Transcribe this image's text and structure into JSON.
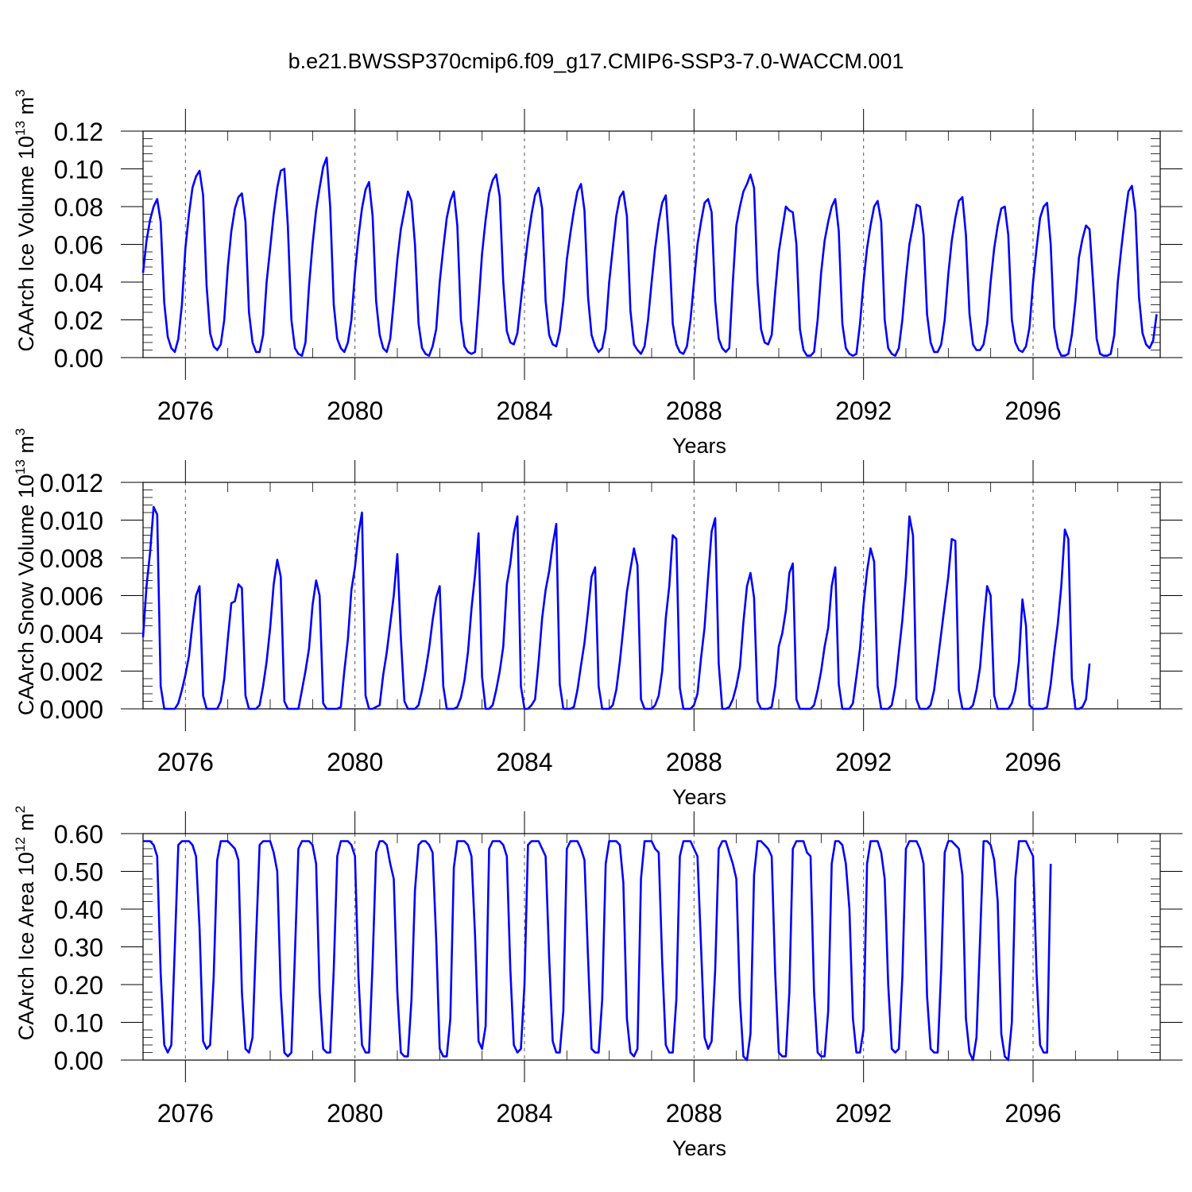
{
  "title": "b.e21.BWSSP370cmip6.f09_g17.CMIP6-SSP3-7.0-WACCM.001",
  "style": {
    "series_color": "#0000ff",
    "axis_color": "#000000",
    "ref_line_color": "#555555"
  },
  "chart_data": [
    {
      "type": "line",
      "xlabel": "Years",
      "ylabel": "CAArch Ice Volume 10",
      "ylabel_exponent": "13",
      "ylabel_unit": "m",
      "ylabel_unit_exponent": "3",
      "xlim": [
        2075.0,
        2099.0
      ],
      "ylim": [
        0.0,
        0.12
      ],
      "xticks": [
        2076,
        2080,
        2084,
        2088,
        2092,
        2096
      ],
      "yticks": [
        "0.00",
        "0.02",
        "0.04",
        "0.06",
        "0.08",
        "0.10",
        "0.12"
      ],
      "reference_lines_x": [
        2076,
        2080,
        2084,
        2088,
        2092,
        2096
      ],
      "series": [
        {
          "cycle": "annual",
          "start": 2075.0,
          "step_years": 0.08333,
          "values": [
            0.045,
            0.062,
            0.073,
            0.08,
            0.084,
            0.072,
            0.029,
            0.011,
            0.005,
            0.003,
            0.01,
            0.028,
            0.058,
            0.076,
            0.09,
            0.096,
            0.099,
            0.086,
            0.038,
            0.013,
            0.006,
            0.004,
            0.007,
            0.02,
            0.048,
            0.067,
            0.079,
            0.085,
            0.087,
            0.072,
            0.024,
            0.008,
            0.003,
            0.003,
            0.012,
            0.04,
            0.058,
            0.076,
            0.09,
            0.099,
            0.1,
            0.07,
            0.02,
            0.005,
            0.002,
            0.001,
            0.008,
            0.038,
            0.06,
            0.078,
            0.09,
            0.101,
            0.106,
            0.08,
            0.028,
            0.01,
            0.005,
            0.003,
            0.008,
            0.02,
            0.045,
            0.064,
            0.079,
            0.089,
            0.093,
            0.075,
            0.03,
            0.012,
            0.005,
            0.003,
            0.01,
            0.03,
            0.052,
            0.068,
            0.078,
            0.088,
            0.083,
            0.06,
            0.018,
            0.005,
            0.002,
            0.001,
            0.006,
            0.015,
            0.04,
            0.058,
            0.074,
            0.083,
            0.088,
            0.07,
            0.02,
            0.006,
            0.003,
            0.002,
            0.003,
            0.028,
            0.055,
            0.073,
            0.087,
            0.094,
            0.097,
            0.085,
            0.04,
            0.014,
            0.008,
            0.007,
            0.013,
            0.03,
            0.047,
            0.063,
            0.076,
            0.086,
            0.09,
            0.079,
            0.03,
            0.012,
            0.007,
            0.006,
            0.014,
            0.03,
            0.052,
            0.066,
            0.078,
            0.088,
            0.092,
            0.078,
            0.032,
            0.012,
            0.006,
            0.003,
            0.005,
            0.015,
            0.04,
            0.058,
            0.075,
            0.085,
            0.088,
            0.075,
            0.025,
            0.007,
            0.004,
            0.002,
            0.006,
            0.02,
            0.04,
            0.058,
            0.072,
            0.082,
            0.086,
            0.058,
            0.018,
            0.007,
            0.003,
            0.002,
            0.006,
            0.02,
            0.04,
            0.06,
            0.072,
            0.082,
            0.084,
            0.077,
            0.03,
            0.01,
            0.005,
            0.003,
            0.005,
            0.04,
            0.07,
            0.08,
            0.088,
            0.092,
            0.097,
            0.09,
            0.04,
            0.015,
            0.008,
            0.007,
            0.012,
            0.035,
            0.056,
            0.068,
            0.08,
            0.078,
            0.077,
            0.06,
            0.015,
            0.004,
            0.001,
            0.001,
            0.003,
            0.02,
            0.045,
            0.062,
            0.072,
            0.08,
            0.084,
            0.067,
            0.018,
            0.005,
            0.002,
            0.001,
            0.002,
            0.018,
            0.04,
            0.058,
            0.07,
            0.08,
            0.083,
            0.072,
            0.02,
            0.005,
            0.002,
            0.001,
            0.005,
            0.02,
            0.042,
            0.06,
            0.07,
            0.081,
            0.08,
            0.065,
            0.023,
            0.008,
            0.003,
            0.003,
            0.007,
            0.02,
            0.044,
            0.062,
            0.074,
            0.083,
            0.085,
            0.065,
            0.023,
            0.007,
            0.004,
            0.004,
            0.007,
            0.018,
            0.04,
            0.058,
            0.07,
            0.079,
            0.08,
            0.065,
            0.02,
            0.008,
            0.004,
            0.003,
            0.006,
            0.016,
            0.04,
            0.058,
            0.074,
            0.08,
            0.082,
            0.06,
            0.016,
            0.005,
            0.001,
            0.001,
            0.002,
            0.012,
            0.03,
            0.053,
            0.063,
            0.07,
            0.068,
            0.04,
            0.01,
            0.002,
            0.001,
            0.001,
            0.002,
            0.012,
            0.04,
            0.058,
            0.074,
            0.088,
            0.091,
            0.077,
            0.032,
            0.013,
            0.007,
            0.005,
            0.009,
            0.023
          ]
        }
      ]
    },
    {
      "type": "line",
      "xlabel": "Years",
      "ylabel": "CAArch Snow Volume 10",
      "ylabel_exponent": "13",
      "ylabel_unit": "m",
      "ylabel_unit_exponent": "3",
      "xlim": [
        2075.0,
        2099.0
      ],
      "ylim": [
        0.0,
        0.012
      ],
      "xticks": [
        2076,
        2080,
        2084,
        2088,
        2092,
        2096
      ],
      "yticks": [
        "0.000",
        "0.002",
        "0.004",
        "0.006",
        "0.008",
        "0.010",
        "0.012"
      ],
      "reference_lines_x": [
        2076,
        2080,
        2084,
        2088,
        2092,
        2096
      ],
      "series": [
        {
          "cycle": "annual",
          "start": 2075.0,
          "step_years": 0.08333,
          "values": [
            0.0038,
            0.0065,
            0.0083,
            0.0107,
            0.0103,
            0.0012,
            0.0,
            0.0,
            0.0,
            0.0,
            0.0003,
            0.001,
            0.0018,
            0.0028,
            0.0045,
            0.006,
            0.0065,
            0.0007,
            0.0,
            0.0,
            0.0,
            0.0,
            0.0004,
            0.0016,
            0.0037,
            0.0056,
            0.0057,
            0.0066,
            0.0064,
            0.0007,
            0.0,
            0.0,
            0.0,
            0.0002,
            0.0012,
            0.0025,
            0.0043,
            0.0066,
            0.0079,
            0.007,
            0.0004,
            0.0,
            0.0,
            0.0,
            0.0,
            0.001,
            0.002,
            0.0032,
            0.0055,
            0.0068,
            0.006,
            0.0003,
            0.0,
            0.0,
            0.0,
            0.0,
            0.0001,
            0.002,
            0.0037,
            0.0063,
            0.0075,
            0.0093,
            0.0104,
            0.0007,
            0.0,
            0.0,
            0.0001,
            0.0002,
            0.0018,
            0.003,
            0.0045,
            0.006,
            0.0082,
            0.0038,
            0.0004,
            0.0,
            0.0,
            0.0,
            0.0002,
            0.001,
            0.002,
            0.0032,
            0.0047,
            0.0059,
            0.0065,
            0.0012,
            0.0,
            0.0,
            0.0,
            0.0001,
            0.0006,
            0.0015,
            0.003,
            0.0053,
            0.0071,
            0.0093,
            0.0017,
            0.0,
            0.0,
            0.0002,
            0.001,
            0.002,
            0.0033,
            0.0066,
            0.0077,
            0.0093,
            0.0102,
            0.0012,
            0.0,
            0.0,
            0.0002,
            0.0005,
            0.0025,
            0.0048,
            0.0063,
            0.0073,
            0.0087,
            0.0098,
            0.0013,
            0.0,
            0.0,
            0.0,
            0.0001,
            0.001,
            0.0023,
            0.0035,
            0.0052,
            0.007,
            0.0075,
            0.0012,
            0.0,
            0.0,
            0.0,
            0.0002,
            0.001,
            0.0025,
            0.0043,
            0.0062,
            0.0074,
            0.0085,
            0.0076,
            0.0005,
            0.0,
            0.0,
            0.0,
            0.0002,
            0.0007,
            0.002,
            0.0048,
            0.0065,
            0.0092,
            0.009,
            0.0011,
            0.0,
            0.0,
            0.0,
            0.0002,
            0.0008,
            0.0027,
            0.0043,
            0.007,
            0.0094,
            0.0101,
            0.0024,
            0.0,
            0.0,
            0.0001,
            0.0005,
            0.0012,
            0.0022,
            0.0046,
            0.0065,
            0.0072,
            0.0059,
            0.0004,
            0.0,
            0.0,
            0.0,
            0.0001,
            0.0012,
            0.0033,
            0.004,
            0.0052,
            0.0072,
            0.0077,
            0.0005,
            0.0,
            0.0,
            0.0,
            0.0,
            0.0002,
            0.001,
            0.002,
            0.0033,
            0.0043,
            0.0065,
            0.0075,
            0.0013,
            0.0,
            0.0,
            0.0,
            0.0003,
            0.0017,
            0.0032,
            0.0055,
            0.0073,
            0.0085,
            0.0078,
            0.0012,
            0.0,
            0.0,
            0.0,
            0.0002,
            0.0012,
            0.003,
            0.0047,
            0.007,
            0.0102,
            0.0092,
            0.0005,
            0.0,
            0.0,
            0.0,
            0.0002,
            0.001,
            0.0025,
            0.004,
            0.0055,
            0.007,
            0.009,
            0.0089,
            0.001,
            0.0,
            0.0,
            0.0,
            0.0002,
            0.001,
            0.0022,
            0.0045,
            0.0065,
            0.006,
            0.0007,
            0.0,
            0.0,
            0.0,
            0.0,
            0.0003,
            0.001,
            0.0025,
            0.0058,
            0.0044,
            0.0002,
            0.0,
            0.0,
            0.0,
            0.0,
            0.0001,
            0.0013,
            0.003,
            0.0045,
            0.0065,
            0.0095,
            0.009,
            0.0016,
            0.0,
            0.0,
            0.0001,
            0.0005,
            0.0024
          ]
        }
      ]
    },
    {
      "type": "line",
      "xlabel": "Years",
      "ylabel": "CAArch Ice Area 10",
      "ylabel_exponent": "12",
      "ylabel_unit": "m",
      "ylabel_unit_exponent": "2",
      "xlim": [
        2075.0,
        2099.0
      ],
      "ylim": [
        0.0,
        0.6
      ],
      "xticks": [
        2076,
        2080,
        2084,
        2088,
        2092,
        2096
      ],
      "yticks": [
        "0.00",
        "0.10",
        "0.20",
        "0.30",
        "0.40",
        "0.50",
        "0.60"
      ],
      "reference_lines_x": [
        2076,
        2080,
        2084,
        2088,
        2092,
        2096
      ],
      "series": [
        {
          "cycle": "annual",
          "start": 2075.0,
          "step_years": 0.08333,
          "values": [
            0.58,
            0.58,
            0.58,
            0.57,
            0.54,
            0.23,
            0.04,
            0.02,
            0.04,
            0.3,
            0.57,
            0.58,
            0.58,
            0.58,
            0.57,
            0.54,
            0.35,
            0.05,
            0.03,
            0.04,
            0.22,
            0.53,
            0.58,
            0.58,
            0.58,
            0.57,
            0.56,
            0.53,
            0.18,
            0.03,
            0.02,
            0.06,
            0.32,
            0.57,
            0.58,
            0.58,
            0.58,
            0.55,
            0.5,
            0.18,
            0.02,
            0.01,
            0.02,
            0.28,
            0.56,
            0.58,
            0.58,
            0.58,
            0.57,
            0.52,
            0.18,
            0.03,
            0.02,
            0.02,
            0.24,
            0.54,
            0.58,
            0.58,
            0.58,
            0.57,
            0.54,
            0.22,
            0.04,
            0.02,
            0.02,
            0.26,
            0.55,
            0.58,
            0.58,
            0.57,
            0.52,
            0.48,
            0.18,
            0.02,
            0.01,
            0.01,
            0.16,
            0.45,
            0.57,
            0.58,
            0.58,
            0.57,
            0.55,
            0.32,
            0.03,
            0.01,
            0.01,
            0.11,
            0.51,
            0.58,
            0.58,
            0.58,
            0.57,
            0.54,
            0.33,
            0.05,
            0.03,
            0.09,
            0.56,
            0.58,
            0.58,
            0.58,
            0.57,
            0.54,
            0.24,
            0.04,
            0.02,
            0.03,
            0.2,
            0.57,
            0.58,
            0.58,
            0.58,
            0.56,
            0.54,
            0.27,
            0.05,
            0.02,
            0.02,
            0.13,
            0.56,
            0.58,
            0.58,
            0.58,
            0.56,
            0.53,
            0.27,
            0.03,
            0.02,
            0.02,
            0.16,
            0.52,
            0.58,
            0.58,
            0.58,
            0.57,
            0.47,
            0.11,
            0.02,
            0.01,
            0.03,
            0.48,
            0.58,
            0.58,
            0.58,
            0.56,
            0.55,
            0.26,
            0.04,
            0.02,
            0.02,
            0.16,
            0.54,
            0.58,
            0.58,
            0.58,
            0.56,
            0.54,
            0.3,
            0.06,
            0.03,
            0.05,
            0.24,
            0.56,
            0.58,
            0.58,
            0.55,
            0.52,
            0.48,
            0.16,
            0.01,
            0.0,
            0.07,
            0.49,
            0.58,
            0.58,
            0.57,
            0.56,
            0.54,
            0.23,
            0.02,
            0.01,
            0.01,
            0.18,
            0.56,
            0.58,
            0.58,
            0.58,
            0.55,
            0.54,
            0.18,
            0.02,
            0.01,
            0.01,
            0.13,
            0.52,
            0.58,
            0.58,
            0.57,
            0.52,
            0.4,
            0.11,
            0.02,
            0.02,
            0.08,
            0.52,
            0.58,
            0.58,
            0.58,
            0.55,
            0.48,
            0.2,
            0.03,
            0.02,
            0.03,
            0.22,
            0.56,
            0.58,
            0.58,
            0.58,
            0.56,
            0.52,
            0.17,
            0.03,
            0.02,
            0.02,
            0.24,
            0.55,
            0.58,
            0.58,
            0.57,
            0.56,
            0.49,
            0.11,
            0.02,
            0.0,
            0.06,
            0.32,
            0.58,
            0.58,
            0.57,
            0.53,
            0.42,
            0.07,
            0.01,
            0.0,
            0.1,
            0.48,
            0.58,
            0.58,
            0.58,
            0.56,
            0.54,
            0.23,
            0.04,
            0.02,
            0.02,
            0.52
          ]
        }
      ]
    }
  ]
}
